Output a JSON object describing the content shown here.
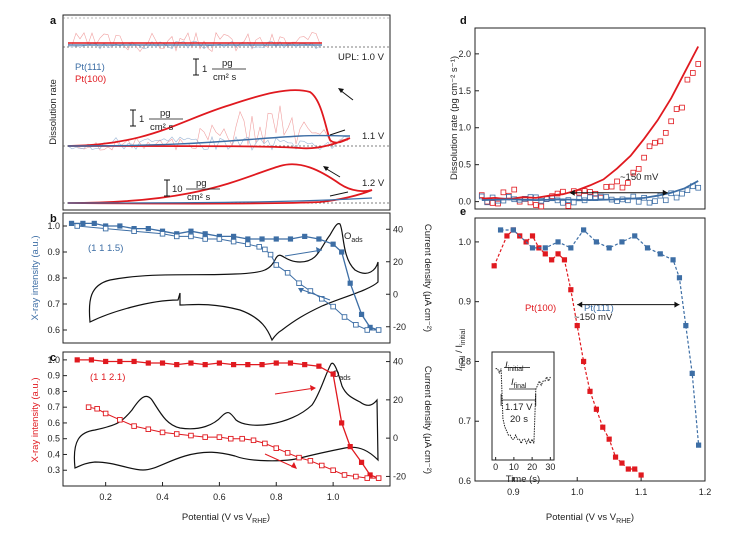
{
  "figure": {
    "panel_labels": [
      "a",
      "b",
      "c",
      "d",
      "e"
    ],
    "colors": {
      "pt111": "#3d6ea5",
      "pt100": "#e0191f",
      "curve": "#111111"
    }
  },
  "chart_data": [
    {
      "panel": "a",
      "type": "line",
      "ylabel": "Dissolution rate",
      "legend": [
        "Pt(111)",
        "Pt(100)"
      ],
      "annotations": {
        "upl_10": "UPL: 1.0 V",
        "upl_11": "1.1 V",
        "upl_12": "1.2 V"
      },
      "scale_bars": [
        {
          "value": "1",
          "unit_num": "pg",
          "unit_den": "cm² s"
        },
        {
          "value": "1",
          "unit_num": "pg",
          "unit_den": "cm² s"
        },
        {
          "value": "10",
          "unit_num": "pg",
          "unit_den": "cm² s"
        }
      ],
      "xlim": [
        0.05,
        1.2
      ]
    },
    {
      "panel": "b",
      "type": "line",
      "ylabel_left": "X-ray intensity (a.u.)",
      "ylabel_right": "Current density (μA cm⁻²)",
      "reflection": "(1 1 1.5)",
      "adsorbate": "O",
      "adsorbate_sub": "ads",
      "xlim": [
        0.05,
        1.2
      ],
      "ylim_left": [
        0.55,
        1.05
      ],
      "yticks_left": [
        0.6,
        0.7,
        0.8,
        0.9,
        1.0
      ],
      "yticks_right": [
        -20,
        0,
        20,
        40
      ],
      "xray_forward": {
        "x": [
          0.08,
          0.12,
          0.16,
          0.2,
          0.25,
          0.3,
          0.35,
          0.4,
          0.45,
          0.5,
          0.55,
          0.6,
          0.65,
          0.7,
          0.75,
          0.8,
          0.85,
          0.9,
          0.95,
          1.0,
          1.03,
          1.06,
          1.1,
          1.13,
          1.16
        ],
        "y": [
          1.01,
          1.01,
          1.01,
          1.0,
          1.0,
          0.99,
          0.99,
          0.98,
          0.97,
          0.98,
          0.97,
          0.96,
          0.96,
          0.95,
          0.95,
          0.95,
          0.95,
          0.96,
          0.95,
          0.93,
          0.9,
          0.78,
          0.66,
          0.61,
          0.6
        ]
      },
      "xray_backward": {
        "x": [
          1.16,
          1.12,
          1.08,
          1.04,
          1.0,
          0.96,
          0.92,
          0.88,
          0.84,
          0.8,
          0.78,
          0.76,
          0.74,
          0.7,
          0.65,
          0.6,
          0.55,
          0.5,
          0.45,
          0.4,
          0.3,
          0.2,
          0.1
        ],
        "y": [
          0.6,
          0.6,
          0.62,
          0.65,
          0.69,
          0.72,
          0.75,
          0.78,
          0.82,
          0.85,
          0.89,
          0.91,
          0.92,
          0.93,
          0.94,
          0.95,
          0.95,
          0.96,
          0.96,
          0.97,
          0.98,
          0.99,
          1.0
        ]
      }
    },
    {
      "panel": "c",
      "type": "line",
      "xlabel": "Potential (V vs V",
      "xlabel_sub": "RHE",
      "ylabel_left": "X-ray intensity (a.u.)",
      "ylabel_right": "Current density (μA cm⁻²)",
      "reflection": "(1 1 2.1)",
      "adsorbate": "O",
      "adsorbate_sub": "ads",
      "xlim": [
        0.05,
        1.2
      ],
      "xticks": [
        0.2,
        0.4,
        0.6,
        0.8,
        1.0
      ],
      "ylim_left": [
        0.2,
        1.05
      ],
      "yticks_left": [
        0.3,
        0.4,
        0.5,
        0.6,
        0.7,
        0.8,
        0.9,
        1.0
      ],
      "yticks_right": [
        -20,
        0,
        20,
        40
      ],
      "xray_forward": {
        "x": [
          0.1,
          0.15,
          0.2,
          0.25,
          0.3,
          0.35,
          0.4,
          0.45,
          0.5,
          0.55,
          0.6,
          0.65,
          0.7,
          0.75,
          0.8,
          0.85,
          0.9,
          0.95,
          1.0,
          1.03,
          1.06,
          1.1,
          1.13,
          1.16
        ],
        "y": [
          1.0,
          1.0,
          0.99,
          0.99,
          0.99,
          0.98,
          0.98,
          0.97,
          0.98,
          0.97,
          0.98,
          0.97,
          0.97,
          0.97,
          0.98,
          0.98,
          0.97,
          0.96,
          0.91,
          0.6,
          0.45,
          0.35,
          0.27,
          0.25
        ]
      },
      "xray_backward": {
        "x": [
          1.16,
          1.12,
          1.08,
          1.04,
          1.0,
          0.96,
          0.92,
          0.88,
          0.84,
          0.8,
          0.76,
          0.72,
          0.68,
          0.64,
          0.6,
          0.55,
          0.5,
          0.45,
          0.4,
          0.35,
          0.3,
          0.25,
          0.2,
          0.17,
          0.14
        ],
        "y": [
          0.25,
          0.25,
          0.26,
          0.27,
          0.3,
          0.33,
          0.36,
          0.38,
          0.41,
          0.44,
          0.47,
          0.49,
          0.5,
          0.5,
          0.51,
          0.51,
          0.52,
          0.53,
          0.54,
          0.56,
          0.58,
          0.62,
          0.66,
          0.69,
          0.7
        ]
      }
    },
    {
      "panel": "d",
      "type": "scatter",
      "ylabel": "Dissolution rate (pg cm⁻² s⁻¹)",
      "annotation": "~150 mV",
      "xlim": [
        0.85,
        1.19
      ],
      "ylim": [
        -0.1,
        2.35
      ],
      "yticks": [
        0.0,
        0.5,
        1.0,
        1.5,
        2.0
      ],
      "pt100": {
        "x": [
          0.86,
          0.88,
          0.9,
          0.92,
          0.94,
          0.96,
          0.98,
          1.0,
          1.02,
          1.04,
          1.06,
          1.08,
          1.1,
          1.12,
          1.14,
          1.16,
          1.18
        ],
        "y": [
          0.04,
          0.05,
          0.03,
          0.06,
          0.05,
          0.08,
          0.1,
          0.15,
          0.22,
          0.3,
          0.45,
          0.62,
          0.85,
          1.1,
          1.4,
          1.75,
          2.1
        ]
      },
      "pt111": {
        "x": [
          0.86,
          0.9,
          0.94,
          0.98,
          1.02,
          1.06,
          1.1,
          1.12,
          1.14,
          1.16,
          1.18
        ],
        "y": [
          0.02,
          0.03,
          0.02,
          0.03,
          0.02,
          0.03,
          0.05,
          0.08,
          0.12,
          0.18,
          0.28
        ]
      }
    },
    {
      "panel": "e",
      "type": "line",
      "xlabel": "Potential (V vs V",
      "xlabel_sub": "RHE",
      "ylabel": "I",
      "ylabel_sub": "final",
      "ylabel_sep": " / I",
      "ylabel_sub2": "initial",
      "series_labels": {
        "pt100": "Pt(100)",
        "pt111": "Pt(111)"
      },
      "annotation": "~150 mV",
      "xlim": [
        0.84,
        1.2
      ],
      "xticks": [
        0.9,
        1.0,
        1.1,
        1.2
      ],
      "ylim": [
        0.6,
        1.04
      ],
      "yticks": [
        0.6,
        0.7,
        0.8,
        0.9,
        1.0
      ],
      "pt100": {
        "x": [
          0.87,
          0.89,
          0.9,
          0.91,
          0.92,
          0.93,
          0.94,
          0.95,
          0.96,
          0.97,
          0.98,
          0.99,
          1.0,
          1.01,
          1.02,
          1.03,
          1.04,
          1.05,
          1.06,
          1.07,
          1.08,
          1.09,
          1.1
        ],
        "y": [
          0.96,
          1.01,
          1.02,
          1.01,
          1.0,
          1.01,
          0.99,
          0.98,
          0.97,
          0.98,
          0.97,
          0.92,
          0.86,
          0.8,
          0.75,
          0.72,
          0.69,
          0.67,
          0.64,
          0.63,
          0.62,
          0.62,
          0.61
        ]
      },
      "pt111": {
        "x": [
          0.88,
          0.9,
          0.93,
          0.95,
          0.97,
          0.99,
          1.01,
          1.03,
          1.05,
          1.07,
          1.09,
          1.11,
          1.13,
          1.15,
          1.16,
          1.17,
          1.18,
          1.19
        ],
        "y": [
          1.02,
          1.02,
          0.99,
          0.99,
          1.0,
          0.99,
          1.02,
          1.0,
          0.99,
          1.0,
          1.01,
          0.99,
          0.98,
          0.97,
          0.94,
          0.86,
          0.78,
          0.66
        ]
      },
      "inset": {
        "label_initial": "I",
        "label_initial_sub": "initial",
        "label_final": "I",
        "label_final_sub": "final",
        "potential": "1.17 V",
        "duration": "20 s",
        "xlabel": "Time (s)",
        "xticks": [
          0,
          10,
          20,
          30
        ],
        "t": [
          0,
          1,
          2,
          3,
          4,
          5,
          6,
          7,
          8,
          9,
          10,
          11,
          12,
          13,
          14,
          15,
          16,
          17,
          18,
          19,
          20,
          21,
          22,
          23,
          24,
          25,
          26,
          27,
          28,
          29,
          30
        ],
        "i": [
          0.8,
          0.8,
          0.79,
          0.8,
          0.68,
          0.66,
          0.65,
          0.64,
          0.64,
          0.63,
          0.63,
          0.64,
          0.63,
          0.63,
          0.62,
          0.63,
          0.63,
          0.62,
          0.63,
          0.62,
          0.63,
          0.62,
          0.75,
          0.76,
          0.77,
          0.76,
          0.77,
          0.77,
          0.78,
          0.77,
          0.78
        ]
      }
    }
  ]
}
